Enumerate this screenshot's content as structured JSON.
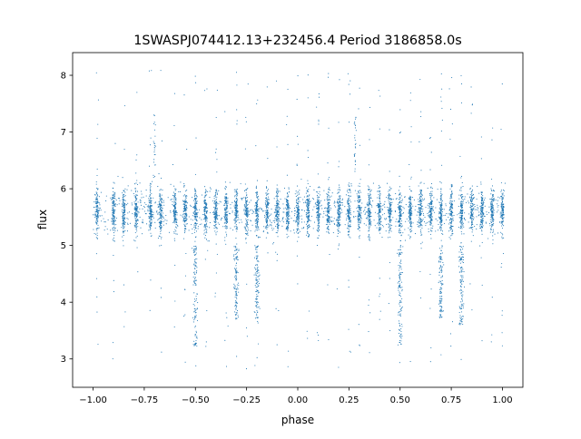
{
  "chart_data": {
    "type": "scatter",
    "title": "1SWASPJ074412.13+232456.4 Period 3186858.0s",
    "xlabel": "phase",
    "ylabel": "flux",
    "xlim": [
      -1.1,
      1.1
    ],
    "ylim": [
      2.5,
      8.4
    ],
    "xticks": [
      -1.0,
      -0.75,
      -0.5,
      -0.25,
      0.0,
      0.25,
      0.5,
      0.75,
      1.0
    ],
    "xtick_labels": [
      "−1.00",
      "−0.75",
      "−0.50",
      "−0.25",
      "0.00",
      "0.25",
      "0.50",
      "0.75",
      "1.00"
    ],
    "yticks": [
      3,
      4,
      5,
      6,
      7,
      8
    ],
    "ytick_labels": [
      "3",
      "4",
      "5",
      "6",
      "7",
      "8"
    ],
    "grid": false,
    "legend": "none",
    "marker_color": "#1f77b4",
    "description_of_series": "phase-folded light curve; dense band of points between flux ~5.0 and ~6.2 across all phases, with sparse outliers from ~2.8 to ~8.1",
    "data_band": {
      "x_range": [
        -1.0,
        1.0
      ],
      "core_flux_range": [
        5.0,
        6.2
      ],
      "outlier_flux_range": [
        2.8,
        8.1
      ]
    },
    "vertical_clusters_phase": [
      -0.98,
      -0.9,
      -0.85,
      -0.79,
      -0.72,
      -0.67,
      -0.6,
      -0.55,
      -0.5,
      -0.45,
      -0.4,
      -0.35,
      -0.3,
      -0.25,
      -0.2,
      -0.15,
      -0.1,
      -0.05,
      0.0,
      0.05,
      0.1,
      0.15,
      0.2,
      0.25,
      0.3,
      0.35,
      0.4,
      0.45,
      0.5,
      0.55,
      0.6,
      0.65,
      0.7,
      0.75,
      0.8,
      0.85,
      0.9,
      0.95,
      1.0
    ],
    "dips": [
      {
        "phase": -0.5,
        "min_flux": 3.2
      },
      {
        "phase": -0.3,
        "min_flux": 3.7
      },
      {
        "phase": -0.2,
        "min_flux": 3.6
      },
      {
        "phase": 0.5,
        "min_flux": 3.2
      },
      {
        "phase": 0.7,
        "min_flux": 3.7
      },
      {
        "phase": 0.8,
        "min_flux": 3.6
      }
    ],
    "spikes": [
      {
        "phase": -0.7,
        "max_flux": 7.3
      },
      {
        "phase": 0.28,
        "max_flux": 7.3
      }
    ]
  }
}
